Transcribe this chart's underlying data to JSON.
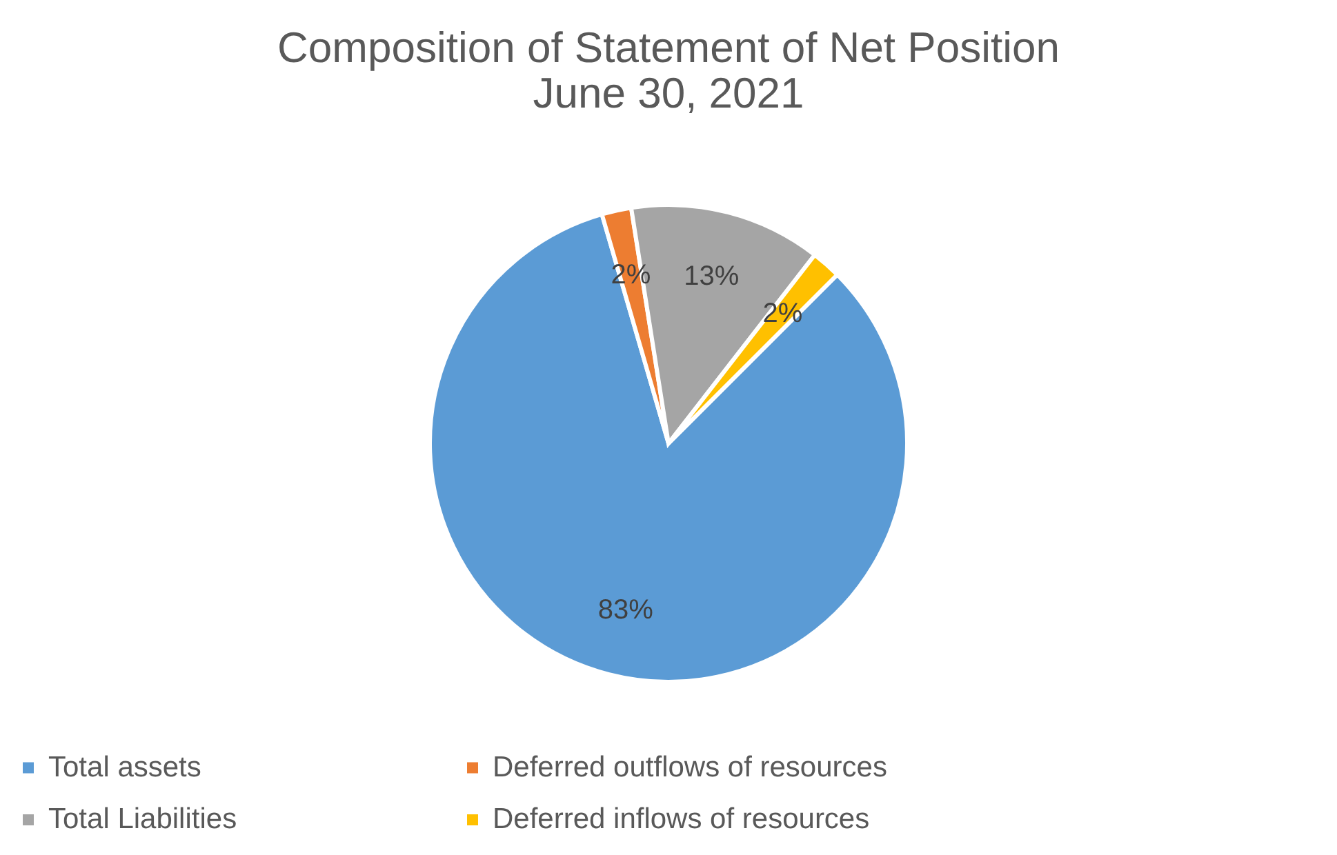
{
  "chart_data": {
    "type": "pie",
    "title": "Composition of Statement of Net Position\nJune 30, 2021",
    "categories": [
      "Total assets",
      "Deferred outflows of resources",
      "Total Liabilities",
      "Deferred inflows of resources"
    ],
    "values": [
      83,
      2,
      13,
      2
    ],
    "colors": [
      "#5b9bd5",
      "#ed7d31",
      "#a5a5a5",
      "#ffc000"
    ],
    "value_labels": [
      "83%",
      "2%",
      "13%",
      "2%"
    ],
    "legend": "bottom"
  }
}
